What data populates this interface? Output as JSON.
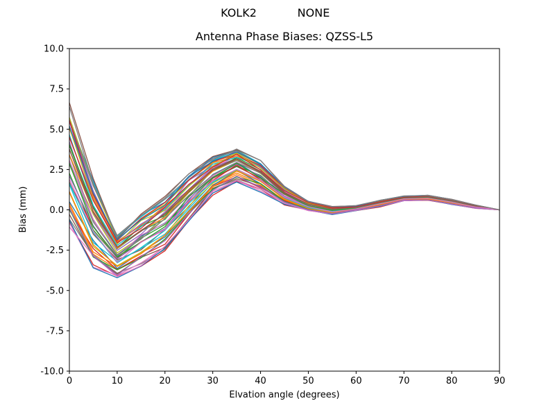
{
  "figure": {
    "station": "KOLK2",
    "radome": "NONE",
    "title": "Antenna Phase Biases: QZSS-L5",
    "xlabel": "Elvation angle (degrees)",
    "ylabel": "Bias (mm)"
  },
  "chart_data": {
    "type": "line",
    "suptitle_left": "KOLK2",
    "suptitle_right": "NONE",
    "title": "Antenna Phase Biases: QZSS-L5",
    "xlabel": "Elvation angle (degrees)",
    "ylabel": "Bias (mm)",
    "xlim": [
      0,
      90
    ],
    "ylim": [
      -10,
      10
    ],
    "xticks": [
      0,
      10,
      20,
      30,
      40,
      50,
      60,
      70,
      80,
      90
    ],
    "yticks": [
      -10,
      -7.5,
      -5,
      -2.5,
      0,
      2.5,
      5,
      7.5,
      10
    ],
    "grid": false,
    "legend": "none",
    "x": [
      0,
      5,
      10,
      15,
      20,
      25,
      30,
      35,
      40,
      45,
      50,
      55,
      60,
      65,
      70,
      75,
      80,
      85,
      90
    ],
    "ensemble": {
      "description": "Approximately 50 overlapping per-satellite antenna phase bias curves forming a band; band center (base) and half-width (spread) in mm at each elevation sample; each curve = base + offset*spread + small jitter",
      "base": [
        2.6,
        -0.9,
        -2.9,
        -1.9,
        -0.9,
        0.7,
        2.1,
        2.8,
        2.1,
        0.9,
        0.25,
        -0.05,
        0.1,
        0.4,
        0.7,
        0.75,
        0.5,
        0.2,
        0.0
      ],
      "spread": [
        3.6,
        2.6,
        1.3,
        1.6,
        1.6,
        1.4,
        1.1,
        1.0,
        0.9,
        0.55,
        0.3,
        0.25,
        0.15,
        0.2,
        0.15,
        0.15,
        0.15,
        0.1,
        0.0
      ],
      "offsets": [
        0.95,
        -0.6,
        0.3,
        -1.0,
        0.72,
        -0.25,
        0.5,
        -0.85,
        0.15,
        0.88,
        -0.45,
        0.62,
        -0.05,
        -0.7,
        0.38,
        1.0,
        -0.93,
        0.22,
        0.8,
        -0.35,
        0.05,
        -0.55,
        0.45,
        -0.15,
        0.68,
        -0.78,
        0.1,
        0.92,
        -0.4,
        0.58,
        -0.98,
        0.28,
        -0.65,
        0.75,
        -0.1,
        0.42,
        -0.88,
        0.18,
        0.65,
        -0.3,
        0.85,
        -0.5,
        0.0,
        0.55,
        -0.75,
        0.32,
        -0.2,
        0.98
      ],
      "jitter_amplitude": 0.14
    },
    "colors": [
      "#1f77b4",
      "#ff7f0e",
      "#2ca02c",
      "#d62728",
      "#9467bd",
      "#8c564b",
      "#e377c2",
      "#7f7f7f",
      "#bcbd22",
      "#17becf"
    ],
    "axis_color": "#000000",
    "background_color": "#ffffff"
  }
}
